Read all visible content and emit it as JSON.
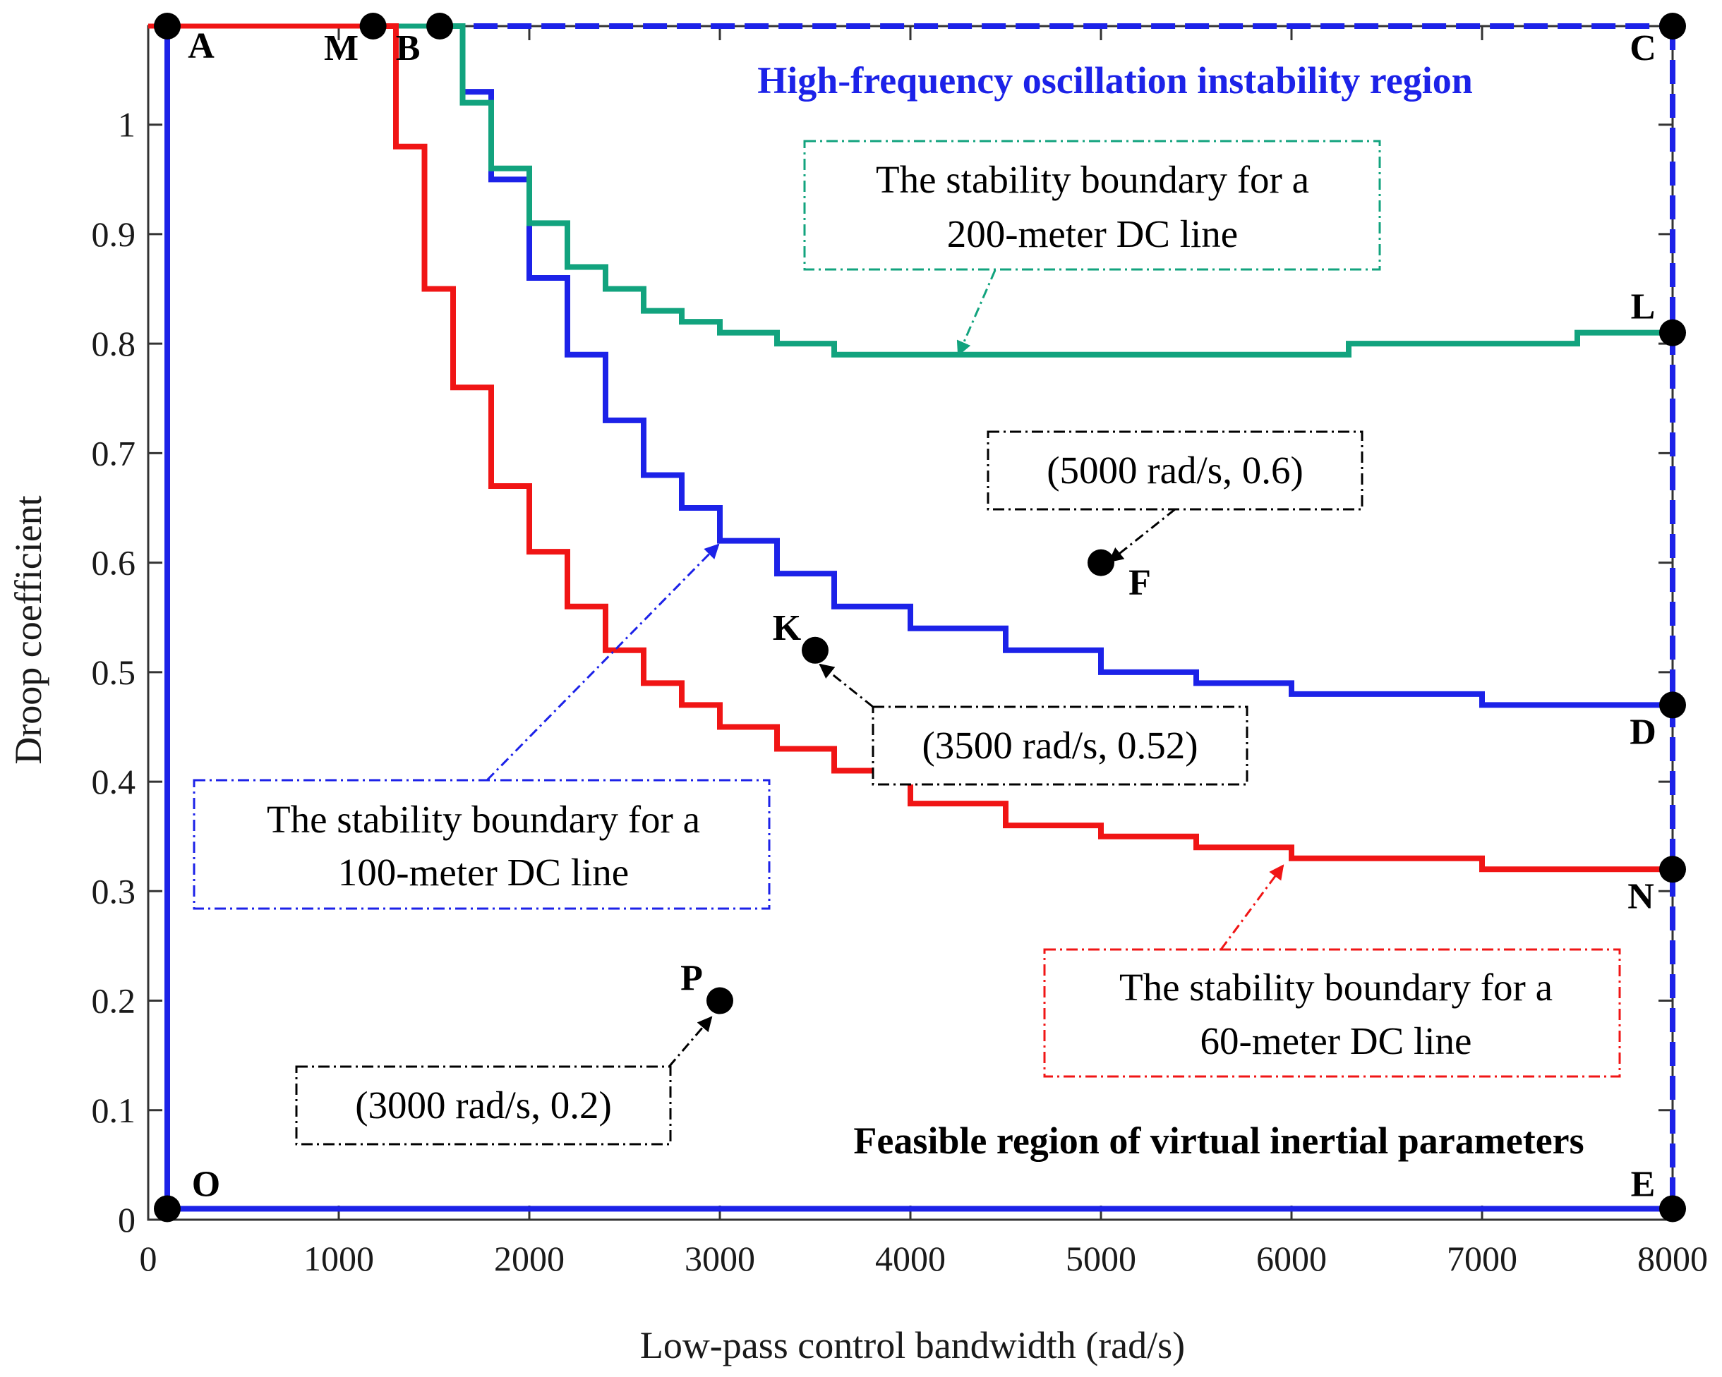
{
  "chart_data": {
    "type": "line",
    "title": "",
    "xlabel": "Low-pass control bandwidth (rad/s)",
    "ylabel": "Droop coefficient",
    "xlim": [
      0,
      8000
    ],
    "ylim": [
      0,
      1.09
    ],
    "xticks": [
      0,
      1000,
      2000,
      3000,
      4000,
      5000,
      6000,
      7000,
      8000
    ],
    "xtick_labels": [
      "0",
      "1000",
      "2000",
      "3000",
      "4000",
      "5000",
      "6000",
      "7000",
      "8000"
    ],
    "yticks": [
      0,
      0.1,
      0.2,
      0.3,
      0.4,
      0.5,
      0.6,
      0.7,
      0.8,
      0.9,
      1.0
    ],
    "ytick_labels": [
      "0",
      "0.1",
      "0.2",
      "0.3",
      "0.4",
      "0.5",
      "0.6",
      "0.7",
      "0.8",
      "0.9",
      "1"
    ],
    "grid": false,
    "colors": {
      "blue": "#1c22e8",
      "red": "#f01515",
      "green": "#12a37e",
      "black": "#000000",
      "dark": "#333333"
    },
    "series": [
      {
        "name": "The stability boundary for a 60-meter DC line",
        "color": "#f01515",
        "x": [
          1180,
          1300,
          1450,
          1600,
          1800,
          2000,
          2200,
          2400,
          2600,
          2800,
          3000,
          3300,
          3600,
          4000,
          4500,
          5000,
          5500,
          6000,
          7000,
          8000
        ],
        "y": [
          1.09,
          0.98,
          0.85,
          0.76,
          0.67,
          0.61,
          0.56,
          0.52,
          0.49,
          0.47,
          0.45,
          0.43,
          0.41,
          0.38,
          0.36,
          0.35,
          0.34,
          0.33,
          0.32,
          0.32
        ]
      },
      {
        "name": "The stability boundary for a 100-meter DC line",
        "color": "#1c22e8",
        "x": [
          1530,
          1650,
          1800,
          2000,
          2200,
          2400,
          2600,
          2800,
          3000,
          3300,
          3600,
          4000,
          4500,
          5000,
          5500,
          6000,
          6500,
          7000,
          8000
        ],
        "y": [
          1.09,
          1.03,
          0.95,
          0.86,
          0.79,
          0.73,
          0.68,
          0.65,
          0.62,
          0.59,
          0.56,
          0.54,
          0.52,
          0.5,
          0.49,
          0.48,
          0.48,
          0.47,
          0.47
        ]
      },
      {
        "name": "The stability boundary for a 200-meter DC line",
        "color": "#12a37e",
        "x": [
          1530,
          1650,
          1800,
          2000,
          2200,
          2400,
          2600,
          2800,
          3000,
          3300,
          3600,
          4000,
          5000,
          6000,
          6300,
          7000,
          7500,
          8000
        ],
        "y": [
          1.09,
          1.02,
          0.96,
          0.91,
          0.87,
          0.85,
          0.83,
          0.82,
          0.81,
          0.8,
          0.79,
          0.79,
          0.79,
          0.79,
          0.8,
          0.8,
          0.81,
          0.81
        ]
      }
    ],
    "points": [
      {
        "label": "A",
        "x": 100,
        "y": 1.09
      },
      {
        "label": "M",
        "x": 1180,
        "y": 1.09
      },
      {
        "label": "B",
        "x": 1530,
        "y": 1.09
      },
      {
        "label": "C",
        "x": 8000,
        "y": 1.09
      },
      {
        "label": "L",
        "x": 8000,
        "y": 0.81
      },
      {
        "label": "D",
        "x": 8000,
        "y": 0.47
      },
      {
        "label": "N",
        "x": 8000,
        "y": 0.32
      },
      {
        "label": "E",
        "x": 8000,
        "y": 0.01
      },
      {
        "label": "O",
        "x": 100,
        "y": 0.01
      },
      {
        "label": "F",
        "x": 5000,
        "y": 0.6
      },
      {
        "label": "K",
        "x": 3500,
        "y": 0.52
      },
      {
        "label": "P",
        "x": 3000,
        "y": 0.2
      }
    ],
    "regions": {
      "high_frequency": "High-frequency oscillation instability region",
      "feasible": "Feasible region of virtual inertial parameters"
    },
    "annotations": {
      "green_box": [
        "The stability boundary for a",
        "200-meter DC line"
      ],
      "blue_box": [
        "The stability boundary for a",
        "100-meter DC line"
      ],
      "red_box": [
        "The stability boundary for a",
        "60-meter DC line"
      ],
      "F_box": "(5000 rad/s, 0.6)",
      "K_box": "(3500 rad/s, 0.52)",
      "P_box": "(3000 rad/s, 0.2)"
    }
  }
}
